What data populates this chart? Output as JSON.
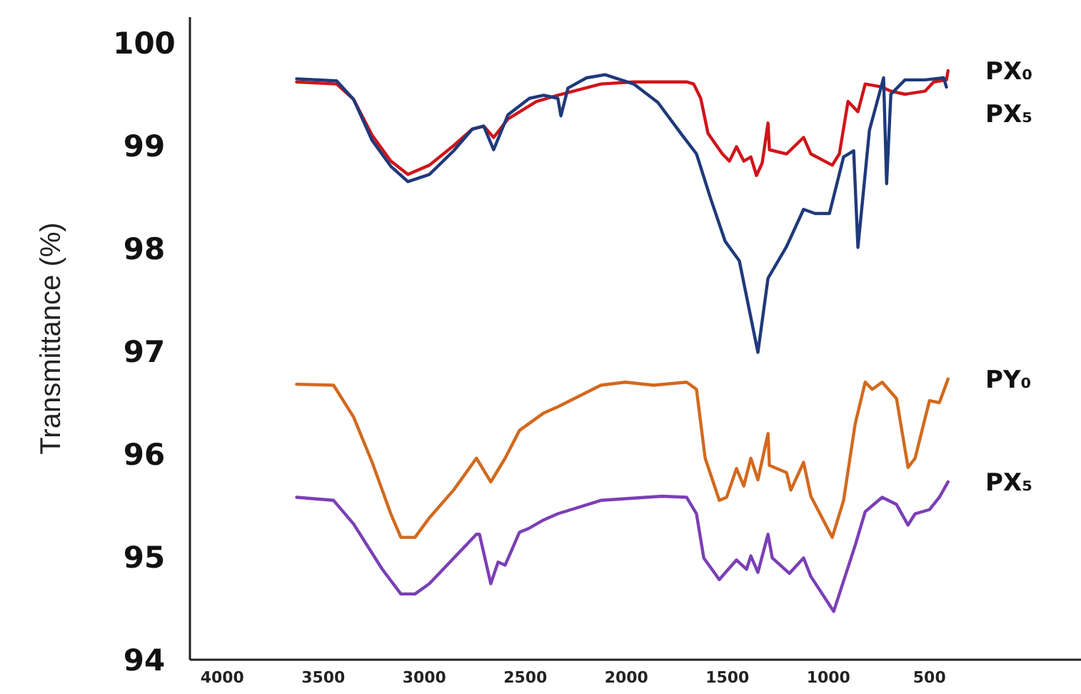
{
  "chart_data": {
    "type": "line",
    "ylabel": "Transmittance (%)",
    "xlim": [
      4160,
      -250
    ],
    "ylim": [
      94,
      100.25
    ],
    "xticks": [
      4000,
      3500,
      3000,
      2500,
      2000,
      1500,
      1000,
      500
    ],
    "yticks": [
      94,
      95,
      96,
      97,
      98,
      99,
      100
    ],
    "grid": false,
    "legend": false,
    "marker": "none",
    "line_style": "solid",
    "series": [
      {
        "name": "PX₀",
        "color": "#d0141a",
        "x": [
          3632,
          3434,
          3350,
          3258,
          3166,
          3081,
          2975,
          2855,
          2763,
          2706,
          2657,
          2586,
          2445,
          2339,
          2126,
          1964,
          1702,
          1667,
          1632,
          1596,
          1525,
          1490,
          1455,
          1419,
          1384,
          1356,
          1328,
          1299,
          1292,
          1207,
          1123,
          1087,
          981,
          946,
          903,
          854,
          818,
          734,
          691,
          621,
          522,
          479,
          416,
          408
        ],
        "values": [
          99.62,
          99.6,
          99.45,
          99.1,
          98.85,
          98.72,
          98.81,
          99.0,
          99.16,
          99.19,
          99.08,
          99.26,
          99.43,
          99.49,
          99.6,
          99.62,
          99.62,
          99.6,
          99.46,
          99.12,
          98.92,
          98.85,
          98.99,
          98.85,
          98.89,
          98.71,
          98.83,
          99.22,
          98.96,
          98.92,
          99.08,
          98.92,
          98.81,
          98.92,
          99.43,
          99.33,
          99.6,
          99.57,
          99.53,
          99.5,
          99.53,
          99.62,
          99.64,
          99.73
        ]
      },
      {
        "name": "PX₅",
        "color": "#1f3a7a",
        "x": [
          3632,
          3434,
          3350,
          3258,
          3166,
          3081,
          2975,
          2855,
          2763,
          2706,
          2657,
          2586,
          2480,
          2409,
          2339,
          2324,
          2289,
          2197,
          2105,
          1964,
          1844,
          1723,
          1653,
          1582,
          1511,
          1441,
          1349,
          1299,
          1207,
          1123,
          1066,
          995,
          925,
          875,
          854,
          797,
          727,
          712,
          691,
          621,
          522,
          430,
          416
        ],
        "values": [
          99.65,
          99.63,
          99.45,
          99.05,
          98.8,
          98.65,
          98.72,
          98.95,
          99.16,
          99.19,
          98.96,
          99.3,
          99.46,
          99.49,
          99.46,
          99.29,
          99.56,
          99.66,
          99.69,
          99.6,
          99.42,
          99.1,
          98.92,
          98.48,
          98.07,
          97.88,
          96.99,
          97.71,
          98.02,
          98.38,
          98.34,
          98.34,
          98.89,
          98.95,
          98.01,
          99.15,
          99.66,
          98.63,
          99.5,
          99.64,
          99.64,
          99.66,
          99.57
        ]
      },
      {
        "name": "PY₀",
        "color": "#d2691e",
        "x": [
          3632,
          3449,
          3350,
          3258,
          3166,
          3116,
          3046,
          2975,
          2855,
          2742,
          2671,
          2600,
          2529,
          2409,
          2339,
          2126,
          2006,
          1865,
          1702,
          1653,
          1610,
          1540,
          1504,
          1455,
          1419,
          1384,
          1349,
          1299,
          1292,
          1207,
          1186,
          1123,
          1087,
          981,
          925,
          868,
          818,
          783,
          734,
          663,
          606,
          571,
          500,
          451,
          408
        ],
        "values": [
          96.68,
          96.67,
          96.36,
          95.92,
          95.42,
          95.19,
          95.19,
          95.38,
          95.65,
          95.96,
          95.73,
          95.96,
          96.23,
          96.4,
          96.46,
          96.67,
          96.7,
          96.67,
          96.7,
          96.63,
          95.96,
          95.55,
          95.58,
          95.86,
          95.69,
          95.96,
          95.75,
          96.2,
          95.89,
          95.82,
          95.65,
          95.92,
          95.59,
          95.19,
          95.55,
          96.29,
          96.7,
          96.63,
          96.7,
          96.54,
          95.87,
          95.96,
          96.52,
          96.5,
          96.73
        ]
      },
      {
        "name": "PX₅",
        "color": "#7b3fb5",
        "x": [
          3632,
          3449,
          3350,
          3208,
          3116,
          3046,
          2975,
          2742,
          2727,
          2671,
          2635,
          2600,
          2529,
          2480,
          2409,
          2339,
          2126,
          1822,
          1702,
          1653,
          1617,
          1540,
          1455,
          1405,
          1384,
          1349,
          1299,
          1278,
          1193,
          1123,
          1087,
          974,
          868,
          818,
          734,
          663,
          606,
          571,
          500,
          451,
          408
        ],
        "values": [
          95.58,
          95.55,
          95.32,
          94.88,
          94.64,
          94.64,
          94.74,
          95.22,
          95.22,
          94.74,
          94.95,
          94.92,
          95.24,
          95.28,
          95.36,
          95.42,
          95.55,
          95.59,
          95.58,
          95.42,
          94.99,
          94.78,
          94.97,
          94.88,
          95.01,
          94.85,
          95.22,
          94.99,
          94.84,
          94.99,
          94.81,
          94.47,
          95.11,
          95.44,
          95.58,
          95.51,
          95.31,
          95.42,
          95.46,
          95.58,
          95.73
        ]
      }
    ]
  }
}
